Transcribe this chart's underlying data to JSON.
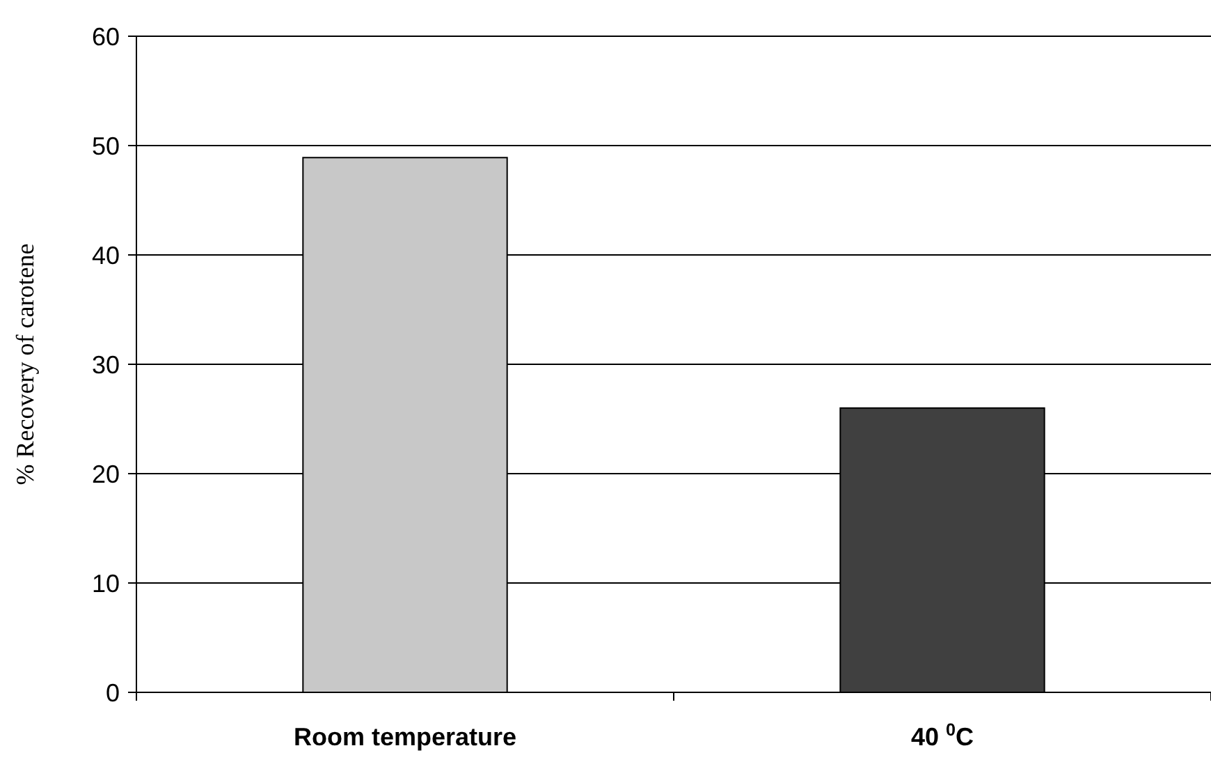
{
  "chart_data": {
    "type": "bar",
    "ylabel": "% Recovery of carotene",
    "categories": [
      "Room temperature",
      "40 $^{0}$C"
    ],
    "values": [
      48.9,
      26.0
    ],
    "colors": [
      "#c8c8c8",
      "#404040"
    ],
    "ylim": [
      0,
      60
    ],
    "yticks": [
      0,
      10,
      20,
      30,
      40,
      50,
      60
    ],
    "grid": "y"
  }
}
